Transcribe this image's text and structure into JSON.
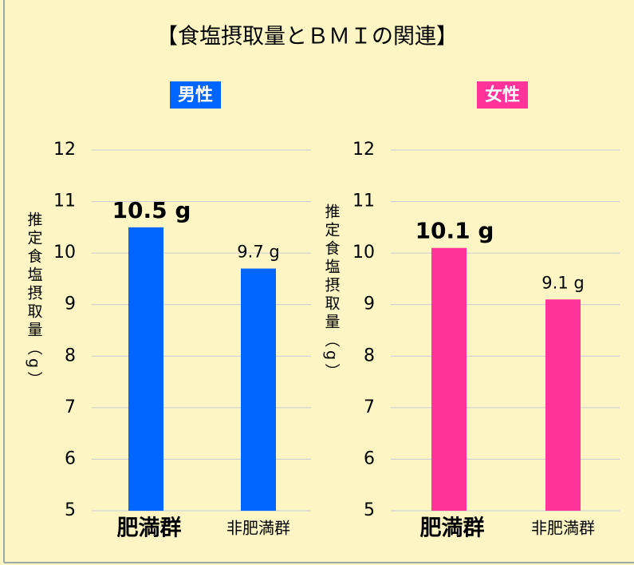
{
  "title": "【食塩摂取量とＢＭＩの関連】",
  "chart_data": [
    {
      "type": "bar",
      "title": "男性",
      "ylabel": "推定食塩摂取量（g）",
      "categories": [
        "肥満群",
        "非肥満群"
      ],
      "values": [
        10.5,
        9.7
      ],
      "value_labels": [
        "10.5 g",
        "9.7 g"
      ],
      "color": "#0066ff",
      "ylim": [
        5,
        12
      ],
      "yticks": [
        5,
        6,
        7,
        8,
        9,
        10,
        11,
        12
      ],
      "grid": true
    },
    {
      "type": "bar",
      "title": "女性",
      "ylabel": "推定食塩摂取量（g）",
      "categories": [
        "肥満群",
        "非肥満群"
      ],
      "values": [
        10.1,
        9.1
      ],
      "value_labels": [
        "10.1 g",
        "9.1 g"
      ],
      "color": "#ff3399",
      "ylim": [
        5,
        12
      ],
      "yticks": [
        5,
        6,
        7,
        8,
        9,
        10,
        11,
        12
      ],
      "grid": true
    }
  ]
}
